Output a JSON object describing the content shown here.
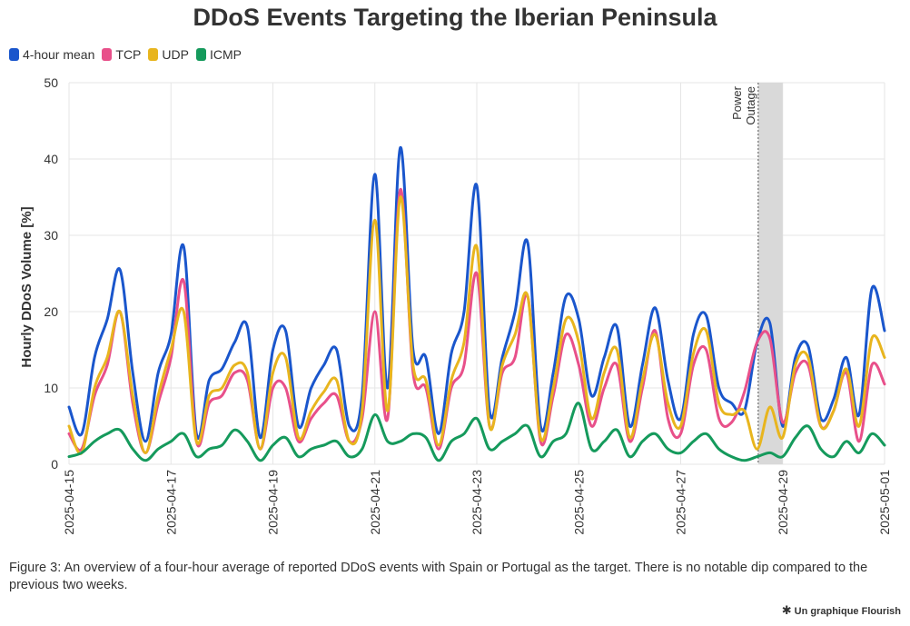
{
  "title": "DDoS Events Targeting the Iberian Peninsula",
  "caption": "Figure 3: An overview of a four-hour average of reported DDoS events with Spain or Portugal as the target. There is no notable dip compared to the previous two weeks.",
  "credit": "Un graphique Flourish",
  "legend": [
    {
      "name": "4-hour mean",
      "color": "#1a56cc"
    },
    {
      "name": "TCP",
      "color": "#e8508a"
    },
    {
      "name": "UDP",
      "color": "#e8b51e"
    },
    {
      "name": "ICMP",
      "color": "#159a5c"
    }
  ],
  "chart_data": {
    "type": "line",
    "title": "DDoS Events Targeting the Iberian Peninsula",
    "xlabel": "",
    "ylabel": "Hourly DDoS Volume [%]",
    "ylim": [
      0,
      50
    ],
    "yticks": [
      0,
      10,
      20,
      30,
      40,
      50
    ],
    "xlim": [
      "2025-04-15",
      "2025-05-01"
    ],
    "xticks": [
      "2025-04-15",
      "2025-04-17",
      "2025-04-19",
      "2025-04-21",
      "2025-04-23",
      "2025-04-25",
      "2025-04-27",
      "2025-04-29",
      "2025-05-01"
    ],
    "grid": true,
    "legend_position": "top-left",
    "annotation": {
      "label": "Power Outage",
      "x": "2025-04-28 12:30",
      "x_start": "2025-04-28 12:30",
      "x_end": "2025-04-29 00:00"
    },
    "x": [
      "2025-04-15 00:00",
      "2025-04-15 06:00",
      "2025-04-15 12:00",
      "2025-04-15 18:00",
      "2025-04-16 00:00",
      "2025-04-16 06:00",
      "2025-04-16 12:00",
      "2025-04-16 18:00",
      "2025-04-17 00:00",
      "2025-04-17 06:00",
      "2025-04-17 12:00",
      "2025-04-17 18:00",
      "2025-04-18 00:00",
      "2025-04-18 06:00",
      "2025-04-18 12:00",
      "2025-04-18 18:00",
      "2025-04-19 00:00",
      "2025-04-19 06:00",
      "2025-04-19 12:00",
      "2025-04-19 18:00",
      "2025-04-20 00:00",
      "2025-04-20 06:00",
      "2025-04-20 12:00",
      "2025-04-20 18:00",
      "2025-04-21 00:00",
      "2025-04-21 06:00",
      "2025-04-21 12:00",
      "2025-04-21 18:00",
      "2025-04-22 00:00",
      "2025-04-22 06:00",
      "2025-04-22 12:00",
      "2025-04-22 18:00",
      "2025-04-23 00:00",
      "2025-04-23 06:00",
      "2025-04-23 12:00",
      "2025-04-23 18:00",
      "2025-04-24 00:00",
      "2025-04-24 06:00",
      "2025-04-24 12:00",
      "2025-04-24 18:00",
      "2025-04-25 00:00",
      "2025-04-25 06:00",
      "2025-04-25 12:00",
      "2025-04-25 18:00",
      "2025-04-26 00:00",
      "2025-04-26 06:00",
      "2025-04-26 12:00",
      "2025-04-26 18:00",
      "2025-04-27 00:00",
      "2025-04-27 06:00",
      "2025-04-27 12:00",
      "2025-04-27 18:00",
      "2025-04-28 00:00",
      "2025-04-28 06:00",
      "2025-04-28 12:00",
      "2025-04-28 18:00",
      "2025-04-29 00:00",
      "2025-04-29 06:00",
      "2025-04-29 12:00",
      "2025-04-29 18:00",
      "2025-04-30 00:00",
      "2025-04-30 06:00",
      "2025-04-30 12:00",
      "2025-04-30 18:00",
      "2025-05-01 00:00"
    ],
    "series": [
      {
        "name": "4-hour mean",
        "color": "#1a56cc",
        "values": [
          7.5,
          4.0,
          14.0,
          19.0,
          25.5,
          12.0,
          3.0,
          12.0,
          17.0,
          28.5,
          4.0,
          11.0,
          12.5,
          16.0,
          18.0,
          3.5,
          15.0,
          17.5,
          5.0,
          10.0,
          13.0,
          15.0,
          5.0,
          9.0,
          38.0,
          10.0,
          41.5,
          15.0,
          14.0,
          4.0,
          14.5,
          20.0,
          36.5,
          7.0,
          14.0,
          20.0,
          29.0,
          5.0,
          12.0,
          22.0,
          19.0,
          9.0,
          14.0,
          18.0,
          5.0,
          13.0,
          20.5,
          11.0,
          6.0,
          17.0,
          19.5,
          10.0,
          8.0,
          7.0,
          16.0,
          18.5,
          5.0,
          14.0,
          15.5,
          6.0,
          8.5,
          14.0,
          6.5,
          23.0,
          17.5
        ]
      },
      {
        "name": "TCP",
        "color": "#e8508a",
        "values": [
          4.0,
          2.0,
          9.0,
          13.0,
          20.0,
          8.0,
          1.5,
          8.0,
          14.0,
          24.0,
          3.0,
          8.0,
          9.0,
          12.0,
          11.0,
          2.0,
          10.0,
          10.0,
          3.0,
          6.0,
          8.0,
          9.0,
          3.0,
          6.0,
          20.0,
          6.0,
          36.0,
          12.0,
          10.0,
          2.0,
          10.0,
          13.0,
          25.0,
          5.0,
          12.0,
          14.0,
          22.0,
          3.0,
          9.0,
          17.0,
          13.0,
          5.0,
          10.0,
          13.0,
          3.0,
          10.0,
          17.5,
          6.0,
          4.0,
          13.0,
          15.0,
          6.0,
          5.5,
          9.5,
          16.0,
          16.5,
          5.5,
          12.0,
          13.0,
          5.0,
          7.0,
          12.0,
          3.0,
          13.0,
          10.5
        ]
      },
      {
        "name": "UDP",
        "color": "#e8b51e",
        "values": [
          5.0,
          1.5,
          10.0,
          14.0,
          20.0,
          9.0,
          1.5,
          9.0,
          15.0,
          20.0,
          3.0,
          9.0,
          10.0,
          13.0,
          12.0,
          2.0,
          12.0,
          14.0,
          3.5,
          7.0,
          9.5,
          11.0,
          3.0,
          7.0,
          32.0,
          7.0,
          35.0,
          13.0,
          11.0,
          2.5,
          11.0,
          16.0,
          28.5,
          5.0,
          13.0,
          17.0,
          22.0,
          3.5,
          10.0,
          19.0,
          16.0,
          6.0,
          12.0,
          15.0,
          3.5,
          11.0,
          17.0,
          8.0,
          5.0,
          14.5,
          17.5,
          8.0,
          6.5,
          7.0,
          2.0,
          7.5,
          3.5,
          13.0,
          14.0,
          5.0,
          7.0,
          12.5,
          5.0,
          16.5,
          14.0
        ]
      },
      {
        "name": "ICMP",
        "color": "#159a5c",
        "values": [
          1.0,
          1.5,
          3.0,
          4.0,
          4.5,
          2.0,
          0.5,
          2.0,
          3.0,
          4.0,
          1.0,
          2.0,
          2.5,
          4.5,
          3.0,
          0.5,
          2.5,
          3.5,
          1.0,
          2.0,
          2.5,
          3.0,
          1.0,
          2.0,
          6.5,
          3.0,
          3.0,
          4.0,
          3.5,
          0.5,
          3.0,
          4.0,
          6.0,
          2.0,
          3.0,
          4.0,
          5.0,
          1.0,
          3.0,
          4.0,
          8.0,
          2.0,
          3.0,
          4.5,
          1.0,
          3.0,
          4.0,
          2.0,
          1.5,
          3.0,
          4.0,
          2.0,
          1.0,
          0.5,
          1.0,
          1.5,
          1.0,
          3.5,
          5.0,
          2.0,
          1.0,
          3.0,
          1.5,
          4.0,
          2.5
        ]
      }
    ]
  }
}
